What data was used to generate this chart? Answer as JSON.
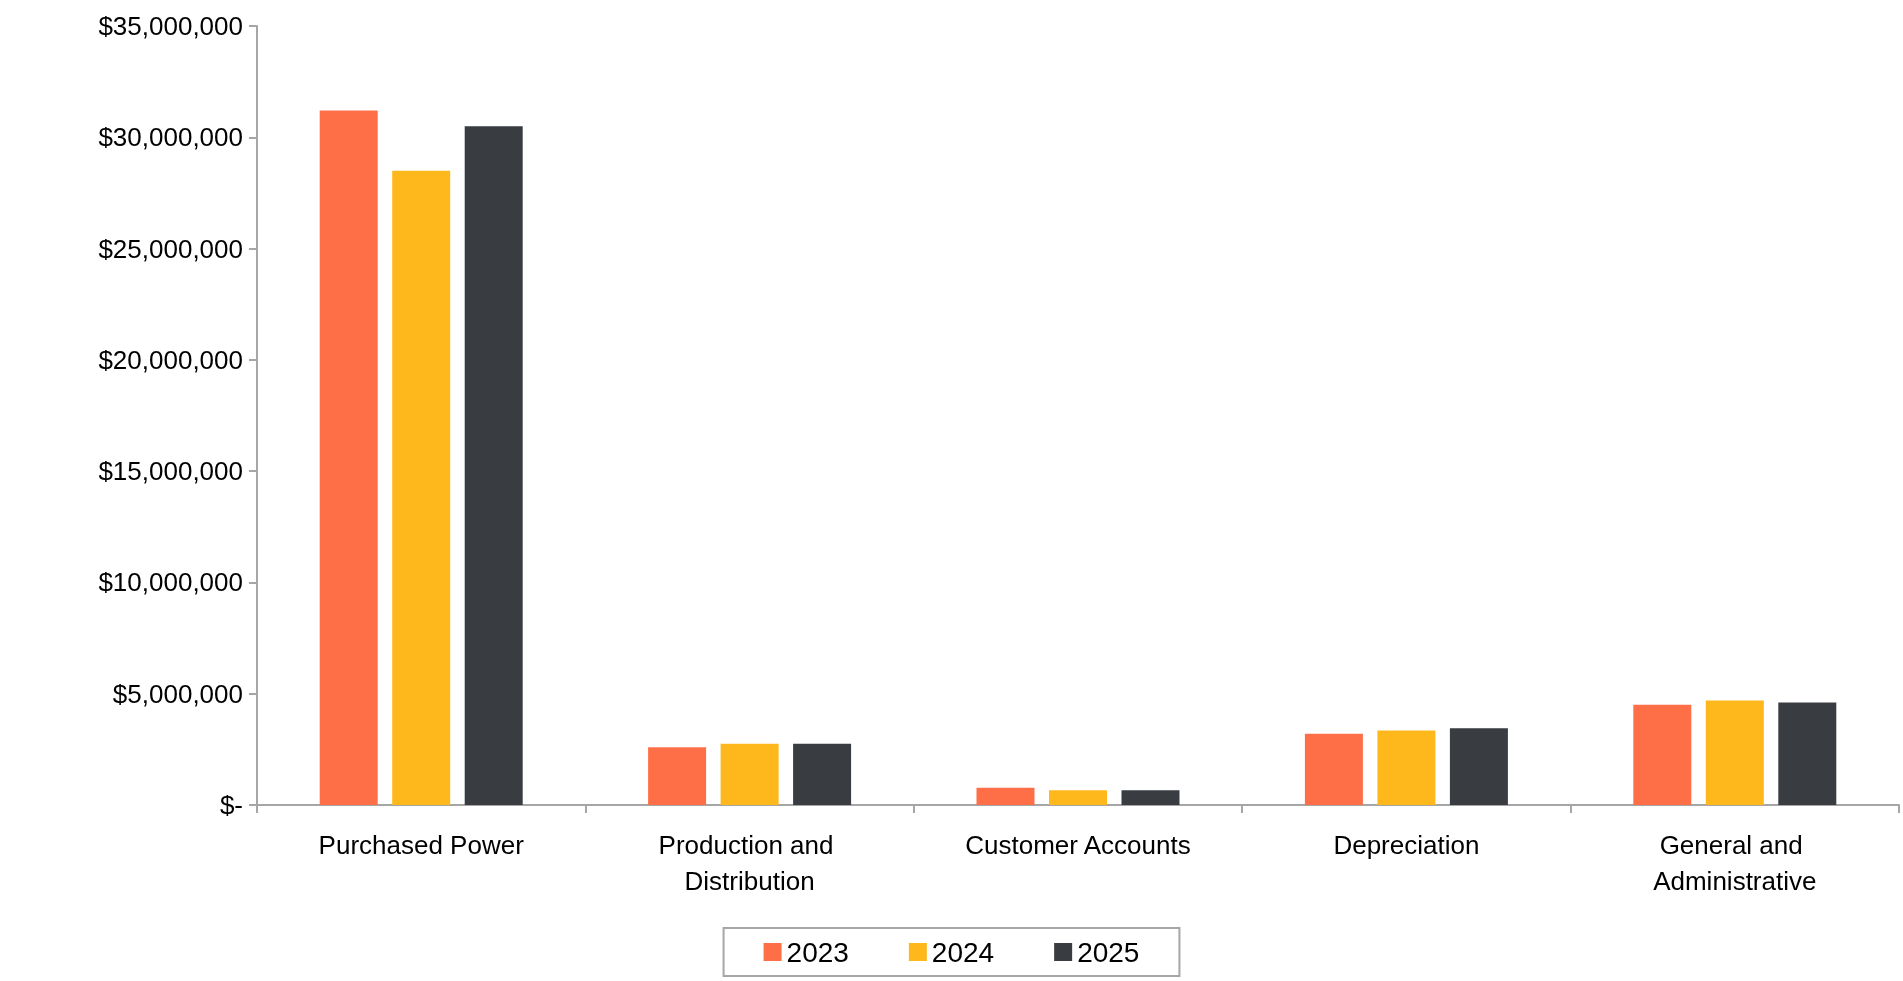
{
  "chart_data": {
    "type": "bar",
    "categories": [
      "Purchased Power",
      "Production and Distribution",
      "Customer Accounts",
      "Depreciation",
      "General and Administrative"
    ],
    "series": [
      {
        "name": "2023",
        "color": "#ff6f47",
        "values": [
          31200000,
          2600000,
          770000,
          3200000,
          4500000
        ]
      },
      {
        "name": "2024",
        "color": "#ffb81c",
        "values": [
          28500000,
          2750000,
          660000,
          3350000,
          4700000
        ]
      },
      {
        "name": "2025",
        "color": "#393d41",
        "values": [
          30500000,
          2750000,
          660000,
          3450000,
          4600000
        ]
      }
    ],
    "ylim": [
      0,
      35000000
    ],
    "yticks": [
      {
        "value": 0,
        "label": "$-"
      },
      {
        "value": 5000000,
        "label": "$5,000,000"
      },
      {
        "value": 10000000,
        "label": "$10,000,000"
      },
      {
        "value": 15000000,
        "label": "$15,000,000"
      },
      {
        "value": 20000000,
        "label": "$20,000,000"
      },
      {
        "value": 25000000,
        "label": "$25,000,000"
      },
      {
        "value": 30000000,
        "label": "$30,000,000"
      },
      {
        "value": 35000000,
        "label": "$35,000,000"
      }
    ],
    "grid": false,
    "legend": "bottom"
  }
}
